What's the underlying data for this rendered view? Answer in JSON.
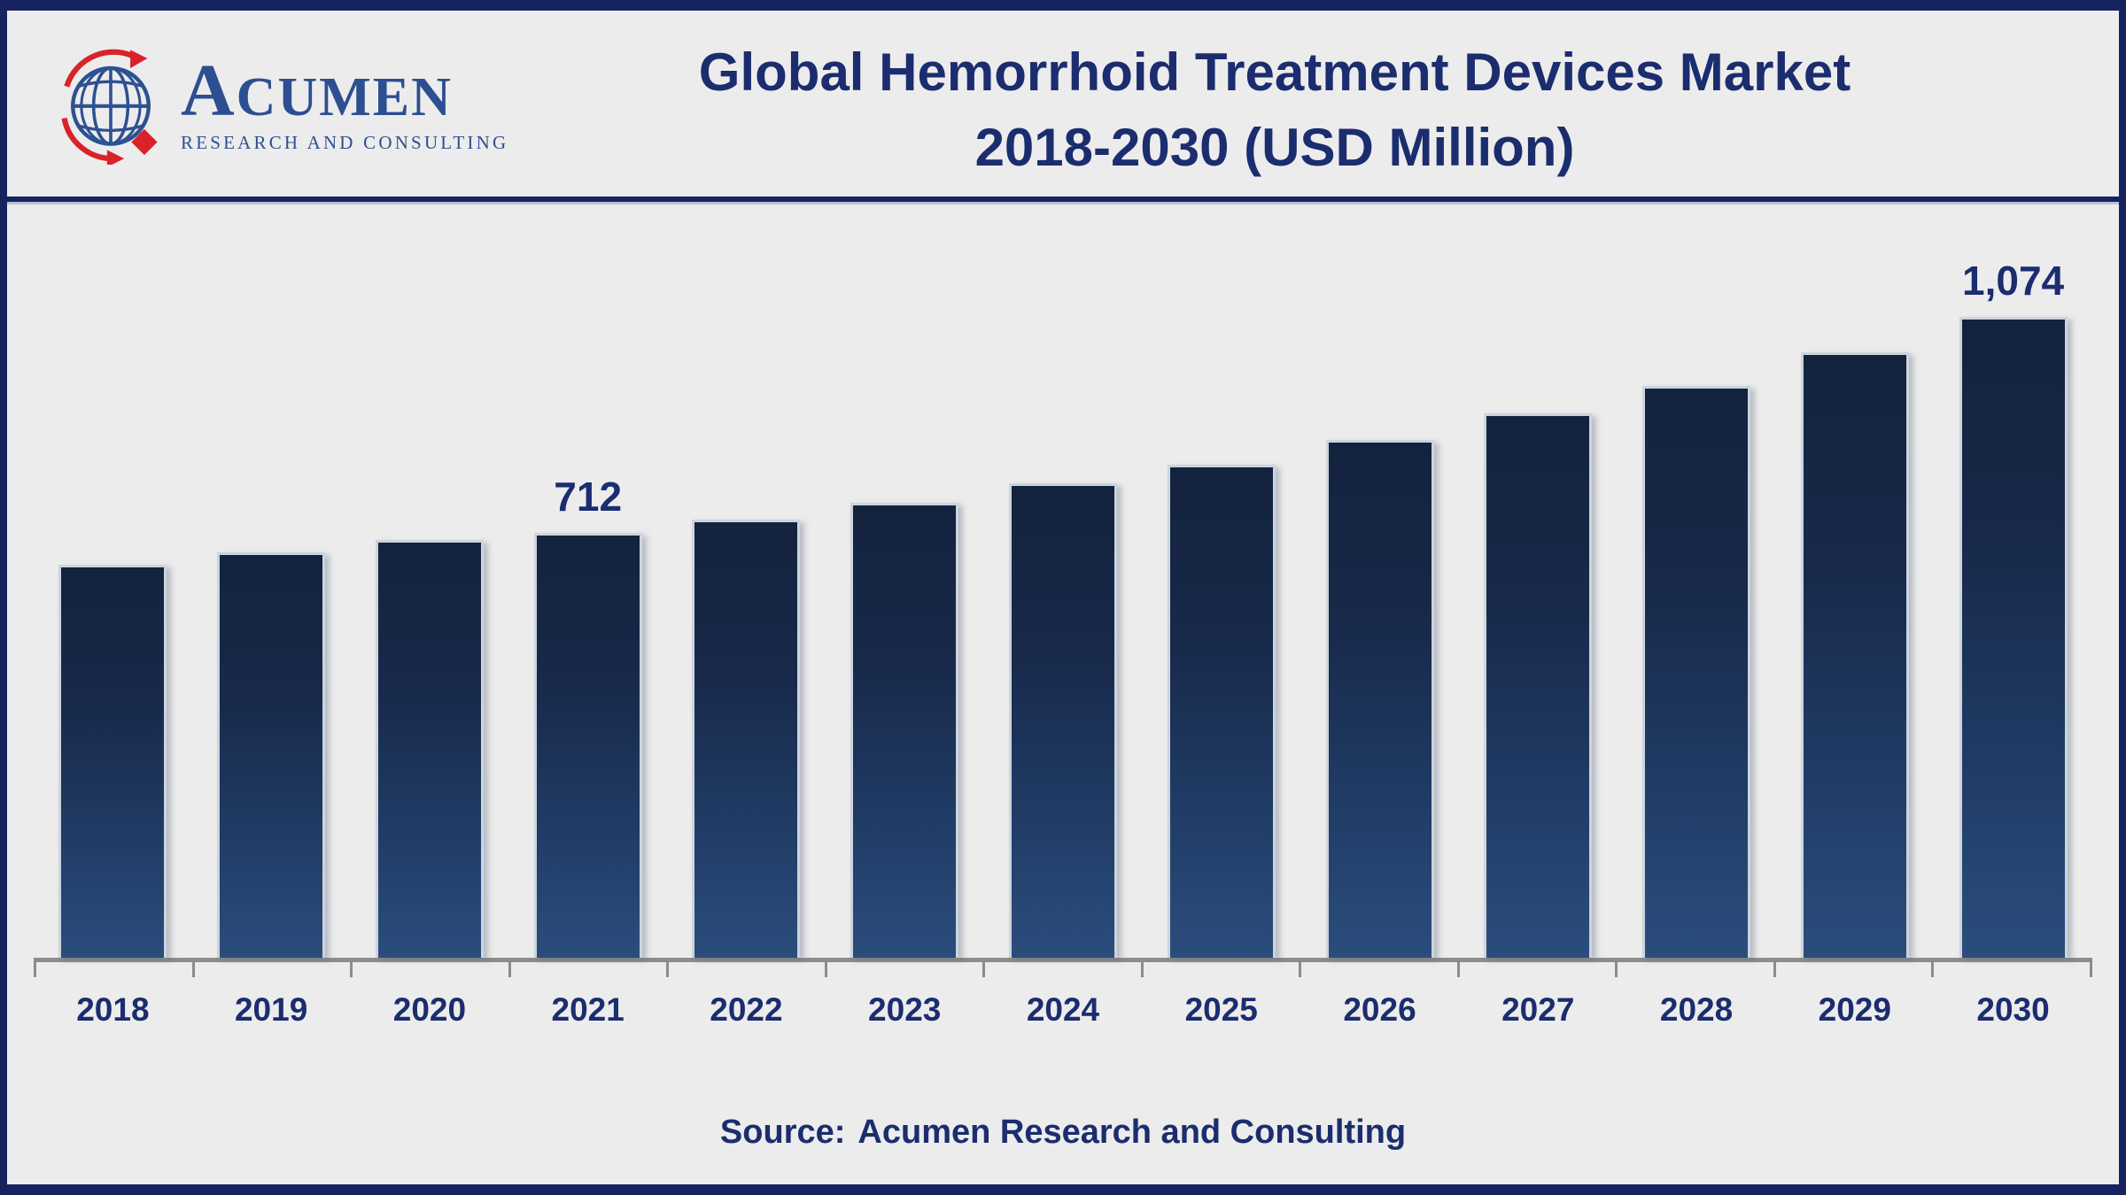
{
  "header": {
    "logo": {
      "brand": "Acumen",
      "brand_initial": "A",
      "brand_rest": "CUMEN",
      "subtitle": "RESEARCH AND CONSULTING"
    },
    "title_line1": "Global Hemorrhoid Treatment Devices Market",
    "title_line2": "2018-2030 (USD Million)"
  },
  "footer": {
    "source_prefix": "Source:",
    "source_name": "Acumen Research and Consulting"
  },
  "colors": {
    "navy_text": "#1b2d6e",
    "frame_border": "#16235f",
    "background": "#ececec",
    "bar_gradient_top": "#13233e",
    "bar_gradient_bottom": "#2b4d7c",
    "axis_gray": "#8c8c8c",
    "logo_blue": "#2d4f91",
    "logo_red": "#d8232a"
  },
  "chart_data": {
    "type": "bar",
    "title": "Global Hemorrhoid Treatment Devices Market 2018-2030 (USD Million)",
    "unit": "USD Million",
    "categories": [
      "2018",
      "2019",
      "2020",
      "2021",
      "2022",
      "2023",
      "2024",
      "2025",
      "2026",
      "2027",
      "2028",
      "2029",
      "2030"
    ],
    "values": [
      658,
      680,
      700,
      712,
      735,
      763,
      795,
      827,
      868,
      912,
      958,
      1015,
      1074
    ],
    "data_labels": {
      "2021": "712",
      "2030": "1,074"
    },
    "xlabel": "",
    "ylabel": "",
    "ylim": [
      0,
      1160
    ],
    "grid": false,
    "legend": false,
    "value_axis_visible": false
  }
}
